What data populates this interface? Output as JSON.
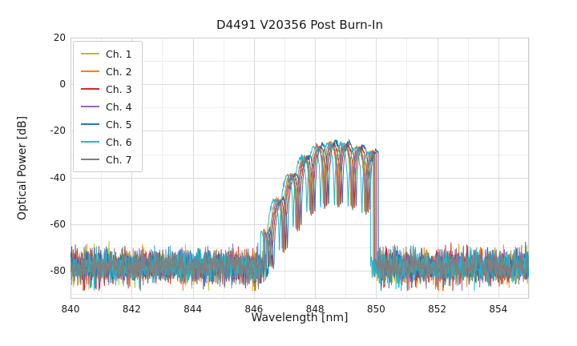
{
  "figure": {
    "title": "D4491 V20356 Post Burn-In",
    "xlabel": "Wavelength [nm]",
    "ylabel": "Optical Power [dB]"
  },
  "chart_data": {
    "type": "line",
    "title": "D4491 V20356 Post Burn-In",
    "xlabel": "Wavelength [nm]",
    "ylabel": "Optical Power [dB]",
    "xlim": [
      840,
      855
    ],
    "ylim": [
      -92,
      20
    ],
    "xticks": [
      840,
      842,
      844,
      846,
      848,
      850,
      852,
      854
    ],
    "yticks": [
      20,
      0,
      -20,
      -40,
      -60,
      -80
    ],
    "grid": {
      "major": true,
      "minor": true,
      "x_minor_step_nm": 1,
      "y_minor_step_db": 10
    },
    "legend_position": "upper left",
    "noise_floor_db": -78,
    "noise_sigma_db": 3.2,
    "signal": {
      "start_nm": 846.35,
      "stop_nm": 849.95,
      "peak_nm": 848.55,
      "peak_db": -24.5,
      "left_curvature_db_per_nm2": 7.8,
      "right_curvature_db_per_nm2": 2.2,
      "mode_spacing_nm": 0.45,
      "notch_depth_db": 26,
      "envelope_points": [
        [
          846.4,
          -62
        ],
        [
          846.8,
          -55
        ],
        [
          847.2,
          -46
        ],
        [
          847.6,
          -39
        ],
        [
          848.0,
          -31
        ],
        [
          848.4,
          -26
        ],
        [
          848.6,
          -24.5
        ],
        [
          849.0,
          -25.5
        ],
        [
          849.4,
          -27.5
        ],
        [
          849.8,
          -29
        ],
        [
          849.95,
          -33
        ],
        [
          850.05,
          -76
        ]
      ]
    },
    "series": [
      {
        "name": "Ch. 1",
        "color": "#bcbd22",
        "offset_nm": 0.02,
        "peak_adj_db": -1.5
      },
      {
        "name": "Ch. 2",
        "color": "#ff7f0e",
        "offset_nm": -0.05,
        "peak_adj_db": -0.5
      },
      {
        "name": "Ch. 3",
        "color": "#d62728",
        "offset_nm": 0.06,
        "peak_adj_db": -1.0
      },
      {
        "name": "Ch. 4",
        "color": "#9467bd",
        "offset_nm": -0.02,
        "peak_adj_db": -1.2
      },
      {
        "name": "Ch. 5",
        "color": "#1f77b4",
        "offset_nm": 0.12,
        "peak_adj_db": 0.0
      },
      {
        "name": "Ch. 6",
        "color": "#17becf",
        "offset_nm": -0.14,
        "peak_adj_db": -0.8
      },
      {
        "name": "Ch. 7",
        "color": "#7f7f7f",
        "offset_nm": 0.0,
        "peak_adj_db": -2.0
      }
    ],
    "plot_colors": {
      "grid_major": "#dcdcdc",
      "grid_minor": "#ededed",
      "border": "#cccccc"
    }
  }
}
